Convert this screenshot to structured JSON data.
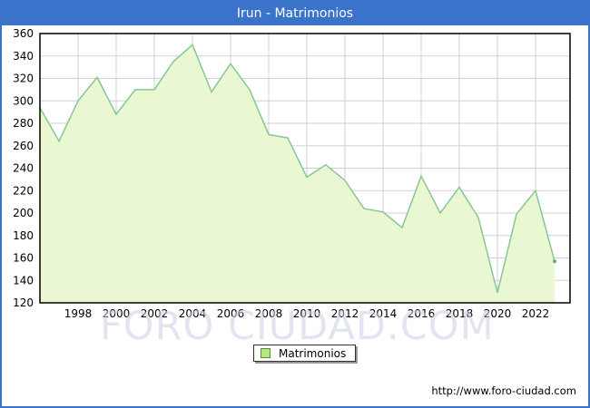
{
  "window": {
    "title": "Irun - Matrimonios"
  },
  "legend": {
    "label": "Matrimonios"
  },
  "watermark": {
    "text": "FORO CIUDAD.COM"
  },
  "footer": {
    "url": "http://www.foro-ciudad.com"
  },
  "colors": {
    "titlebar_bg": "#3a73c9",
    "titlebar_text": "#ffffff",
    "page_border": "#3a73c9",
    "grid": "#d0d0d0",
    "plot_border": "#000000",
    "area_fill": "#e9f8d3",
    "line_stroke": "#86c793",
    "end_dot": "#6aa87a",
    "legend_swatch_fill": "#b9e87e",
    "legend_swatch_border": "#538c3c",
    "axis_text": "#000000",
    "watermark_text": "#ccd1e4"
  },
  "chart_data": {
    "type": "area",
    "title": "Irun - Matrimonios",
    "series_name": "Matrimonios",
    "x": [
      1996,
      1997,
      1998,
      1999,
      2000,
      2001,
      2002,
      2003,
      2004,
      2005,
      2006,
      2007,
      2008,
      2009,
      2010,
      2011,
      2012,
      2013,
      2014,
      2015,
      2016,
      2017,
      2018,
      2019,
      2020,
      2021,
      2022,
      2023
    ],
    "values": [
      294,
      264,
      300,
      321,
      288,
      310,
      310,
      335,
      350,
      308,
      333,
      310,
      270,
      267,
      232,
      243,
      229,
      204,
      201,
      187,
      233,
      200,
      223,
      196,
      129,
      199,
      220,
      157
    ],
    "xlabel": "",
    "ylabel": "",
    "ylim": [
      120,
      360
    ],
    "ytick_step": 20,
    "y_tick_labels": [
      "360",
      "340",
      "320",
      "300",
      "280",
      "260",
      "240",
      "220",
      "200",
      "180",
      "160",
      "140",
      "120"
    ],
    "x_tick_labels": [
      "1998",
      "2000",
      "2002",
      "2004",
      "2006",
      "2008",
      "2010",
      "2012",
      "2014",
      "2016",
      "2018",
      "2020",
      "2022"
    ],
    "grid": true,
    "legend_position": "bottom-center"
  }
}
